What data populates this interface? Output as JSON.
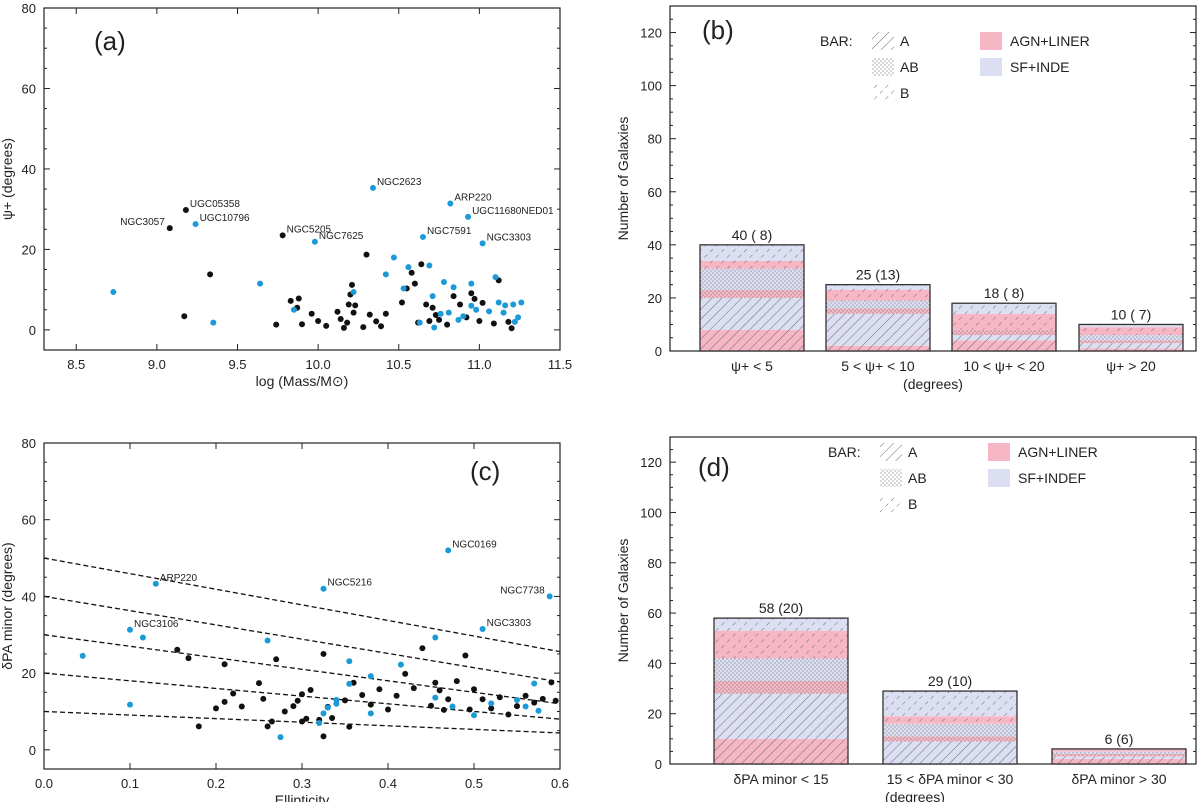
{
  "colors": {
    "black_point": "#111111",
    "blue_point": "#1a9ad6",
    "agn_liner": "#f7b6c4",
    "sf_indef": "#dcdff2",
    "frame": "#333333"
  },
  "chart_data": [
    {
      "type": "scatter",
      "panel_label": "(a)",
      "xlabel": "log (Mass/M⊙)",
      "ylabel": "ψ+ (degrees)",
      "xlim": [
        8.3,
        11.5
      ],
      "ylim": [
        -5,
        80
      ],
      "xticks": [
        "8.5",
        "9.0",
        "9.5",
        "10.0",
        "10.5",
        "11.0",
        "11.5"
      ],
      "yticks": [
        "0",
        "20",
        "40",
        "60",
        "80"
      ],
      "series": [
        {
          "name": "black",
          "points": [
            [
              9.08,
              25.3
            ],
            [
              9.18,
              29.8
            ],
            [
              9.17,
              3.4
            ],
            [
              9.33,
              13.8
            ],
            [
              9.74,
              1.3
            ],
            [
              9.78,
              23.5
            ],
            [
              9.83,
              7.2
            ],
            [
              9.87,
              5.5
            ],
            [
              9.88,
              7.8
            ],
            [
              9.9,
              1.4
            ],
            [
              9.96,
              4.0
            ],
            [
              10.0,
              2.2
            ],
            [
              10.05,
              1.0
            ],
            [
              10.12,
              4.5
            ],
            [
              10.14,
              2.7
            ],
            [
              10.16,
              0.5
            ],
            [
              10.18,
              1.8
            ],
            [
              10.19,
              6.3
            ],
            [
              10.2,
              8.8
            ],
            [
              10.21,
              11.2
            ],
            [
              10.22,
              4.3
            ],
            [
              10.23,
              6.1
            ],
            [
              10.28,
              0.7
            ],
            [
              10.32,
              3.8
            ],
            [
              10.36,
              2.1
            ],
            [
              10.39,
              0.9
            ],
            [
              10.42,
              4.0
            ],
            [
              10.52,
              6.8
            ],
            [
              10.55,
              10.3
            ],
            [
              10.58,
              14.2
            ],
            [
              10.6,
              11.5
            ],
            [
              10.62,
              1.8
            ],
            [
              10.64,
              16.3
            ],
            [
              10.67,
              6.3
            ],
            [
              10.69,
              2.2
            ],
            [
              10.71,
              5.5
            ],
            [
              10.73,
              3.7
            ],
            [
              10.75,
              2.5
            ],
            [
              10.8,
              1.3
            ],
            [
              10.84,
              8.4
            ],
            [
              10.88,
              6.3
            ],
            [
              10.92,
              3.1
            ],
            [
              10.95,
              9.1
            ],
            [
              10.97,
              7.7
            ],
            [
              11.0,
              2.2
            ],
            [
              11.02,
              6.7
            ],
            [
              11.09,
              1.6
            ],
            [
              11.12,
              12.3
            ],
            [
              11.18,
              2.0
            ],
            [
              11.2,
              0.4
            ],
            [
              10.3,
              18.7
            ]
          ],
          "color": "#111111"
        },
        {
          "name": "blue",
          "points": [
            [
              8.73,
              9.4
            ],
            [
              9.24,
              26.3
            ],
            [
              9.35,
              1.8
            ],
            [
              9.64,
              11.5
            ],
            [
              9.85,
              5.0
            ],
            [
              9.98,
              21.9
            ],
            [
              10.22,
              9.4
            ],
            [
              10.34,
              35.3
            ],
            [
              10.42,
              13.8
            ],
            [
              10.47,
              18.0
            ],
            [
              10.53,
              10.3
            ],
            [
              10.56,
              15.6
            ],
            [
              10.63,
              1.8
            ],
            [
              10.65,
              23.1
            ],
            [
              10.71,
              8.4
            ],
            [
              10.72,
              0.6
            ],
            [
              10.78,
              11.9
            ],
            [
              10.81,
              4.3
            ],
            [
              10.82,
              31.4
            ],
            [
              10.84,
              10.6
            ],
            [
              10.87,
              2.5
            ],
            [
              10.9,
              3.4
            ],
            [
              10.93,
              28.1
            ],
            [
              10.95,
              11.5
            ],
            [
              10.98,
              5.0
            ],
            [
              11.02,
              21.5
            ],
            [
              11.06,
              4.6
            ],
            [
              11.1,
              13.1
            ],
            [
              11.12,
              6.8
            ],
            [
              11.15,
              4.3
            ],
            [
              11.16,
              6.1
            ],
            [
              11.21,
              6.3
            ],
            [
              11.22,
              2.0
            ],
            [
              11.24,
              3.1
            ],
            [
              11.26,
              6.8
            ],
            [
              10.69,
              16.0
            ],
            [
              10.76,
              4.0
            ],
            [
              10.95,
              6.0
            ]
          ],
          "color": "#1a9ad6"
        }
      ],
      "annotations": [
        {
          "text": "NGC3057",
          "x": 9.08,
          "y": 25.3,
          "side": "left"
        },
        {
          "text": "UGC05358",
          "x": 9.18,
          "y": 29.8,
          "side": "right"
        },
        {
          "text": "UGC10796",
          "x": 9.24,
          "y": 26.3,
          "side": "right"
        },
        {
          "text": "NGC5205",
          "x": 9.78,
          "y": 23.5,
          "side": "right"
        },
        {
          "text": "NGC7625",
          "x": 9.98,
          "y": 21.9,
          "side": "right"
        },
        {
          "text": "NGC2623",
          "x": 10.34,
          "y": 35.3,
          "side": "right"
        },
        {
          "text": "ARP220",
          "x": 10.82,
          "y": 31.4,
          "side": "right"
        },
        {
          "text": "UGC11680NED01",
          "x": 10.93,
          "y": 28.1,
          "side": "right"
        },
        {
          "text": "NGC7591",
          "x": 10.65,
          "y": 23.1,
          "side": "right"
        },
        {
          "text": "NGC3303",
          "x": 11.02,
          "y": 21.5,
          "side": "right"
        }
      ]
    },
    {
      "type": "bar",
      "stacked": true,
      "panel_label": "(b)",
      "xlabel": "(degrees)",
      "ylabel": "Number of Galaxies",
      "ylim": [
        0,
        130
      ],
      "yticks": [
        "0",
        "20",
        "40",
        "60",
        "80",
        "100",
        "120"
      ],
      "categories": [
        "ψ+ < 5",
        "5 < ψ+ < 10",
        "10 < ψ+ < 20",
        "ψ+ > 20"
      ],
      "segment_order": [
        "AGN+LINER / A",
        "SF+INDEF / A",
        "AGN+LINER / AB",
        "SF+INDEF / AB",
        "AGN+LINER / B",
        "SF+INDEF / B"
      ],
      "segments": [
        [
          8,
          12,
          3,
          8,
          3,
          6
        ],
        [
          2,
          12,
          2,
          3,
          4,
          2
        ],
        [
          4,
          2,
          2,
          0,
          6,
          4
        ],
        [
          1,
          2,
          1,
          2,
          3,
          1
        ]
      ],
      "bar_labels": [
        "40 ( 8)",
        "25 (13)",
        "18 ( 8)",
        "10 ( 7)"
      ],
      "totals": [
        40,
        25,
        18,
        10
      ],
      "legend": {
        "bar_title": "BAR:",
        "bar_types": [
          "A",
          "AB",
          "B"
        ],
        "classes": [
          "AGN+LINER",
          "SF+INDE"
        ]
      }
    },
    {
      "type": "scatter",
      "panel_label": "(c)",
      "xlabel": "Ellipticity",
      "ylabel": "δPA minor (degrees)",
      "xlim": [
        0.0,
        0.6
      ],
      "ylim": [
        -5,
        80
      ],
      "xticks": [
        "0.0",
        "0.1",
        "0.2",
        "0.3",
        "0.4",
        "0.5",
        "0.6"
      ],
      "yticks": [
        "0",
        "20",
        "40",
        "60",
        "80"
      ],
      "dashed_lines": [
        [
          10,
          4.4
        ],
        [
          20,
          8.0
        ],
        [
          30,
          12.0
        ],
        [
          40,
          17.7
        ],
        [
          50,
          25.6
        ]
      ],
      "series": [
        {
          "name": "black",
          "points": [
            [
              0.155,
              26.1
            ],
            [
              0.168,
              23.9
            ],
            [
              0.18,
              6.1
            ],
            [
              0.2,
              10.8
            ],
            [
              0.21,
              12.5
            ],
            [
              0.21,
              22.3
            ],
            [
              0.22,
              14.7
            ],
            [
              0.23,
              11.3
            ],
            [
              0.25,
              17.4
            ],
            [
              0.255,
              13.3
            ],
            [
              0.26,
              6.1
            ],
            [
              0.265,
              7.4
            ],
            [
              0.27,
              23.6
            ],
            [
              0.28,
              10.0
            ],
            [
              0.29,
              11.4
            ],
            [
              0.295,
              12.8
            ],
            [
              0.3,
              7.4
            ],
            [
              0.305,
              8.1
            ],
            [
              0.31,
              15.6
            ],
            [
              0.32,
              7.8
            ],
            [
              0.325,
              25.0
            ],
            [
              0.33,
              11.2
            ],
            [
              0.335,
              8.3
            ],
            [
              0.35,
              12.9
            ],
            [
              0.355,
              6.0
            ],
            [
              0.36,
              17.5
            ],
            [
              0.37,
              14.3
            ],
            [
              0.38,
              11.8
            ],
            [
              0.39,
              15.8
            ],
            [
              0.41,
              14.1
            ],
            [
              0.42,
              19.8
            ],
            [
              0.43,
              16.1
            ],
            [
              0.44,
              26.5
            ],
            [
              0.45,
              11.5
            ],
            [
              0.455,
              17.5
            ],
            [
              0.46,
              15.5
            ],
            [
              0.465,
              10.4
            ],
            [
              0.47,
              13.2
            ],
            [
              0.48,
              17.9
            ],
            [
              0.49,
              24.6
            ],
            [
              0.495,
              10.5
            ],
            [
              0.5,
              15.8
            ],
            [
              0.51,
              13.2
            ],
            [
              0.52,
              10.8
            ],
            [
              0.53,
              13.7
            ],
            [
              0.54,
              9.2
            ],
            [
              0.55,
              11.4
            ],
            [
              0.56,
              14.1
            ],
            [
              0.57,
              12.3
            ],
            [
              0.58,
              13.3
            ],
            [
              0.59,
              17.6
            ],
            [
              0.595,
              12.8
            ],
            [
              0.325,
              3.5
            ],
            [
              0.3,
              14.5
            ],
            [
              0.4,
              10.5
            ]
          ],
          "color": "#111111"
        },
        {
          "name": "blue",
          "points": [
            [
              0.045,
              24.5
            ],
            [
              0.1,
              11.8
            ],
            [
              0.1,
              31.3
            ],
            [
              0.115,
              29.3
            ],
            [
              0.13,
              43.3
            ],
            [
              0.26,
              28.5
            ],
            [
              0.275,
              3.3
            ],
            [
              0.32,
              7.0
            ],
            [
              0.325,
              42.0
            ],
            [
              0.325,
              9.5
            ],
            [
              0.33,
              11.0
            ],
            [
              0.34,
              13.0
            ],
            [
              0.355,
              17.2
            ],
            [
              0.355,
              23.1
            ],
            [
              0.38,
              19.2
            ],
            [
              0.38,
              9.5
            ],
            [
              0.415,
              22.2
            ],
            [
              0.455,
              29.3
            ],
            [
              0.455,
              13.6
            ],
            [
              0.47,
              52.0
            ],
            [
              0.475,
              11.3
            ],
            [
              0.5,
              9.0
            ],
            [
              0.51,
              31.5
            ],
            [
              0.52,
              12.1
            ],
            [
              0.55,
              13.0
            ],
            [
              0.56,
              11.3
            ],
            [
              0.57,
              17.3
            ],
            [
              0.575,
              10.2
            ],
            [
              0.588,
              40.0
            ],
            [
              0.34,
              12.0
            ]
          ],
          "color": "#1a9ad6"
        }
      ],
      "annotations": [
        {
          "text": "ARP220",
          "x": 0.13,
          "y": 43.3,
          "side": "right"
        },
        {
          "text": "NGC3106",
          "x": 0.1,
          "y": 31.3,
          "side": "right"
        },
        {
          "text": "NGC5216",
          "x": 0.325,
          "y": 42.0,
          "side": "right"
        },
        {
          "text": "NGC0169",
          "x": 0.47,
          "y": 52.0,
          "side": "right"
        },
        {
          "text": "NGC7738",
          "x": 0.588,
          "y": 40.0,
          "side": "left"
        },
        {
          "text": "NGC3303",
          "x": 0.51,
          "y": 31.5,
          "side": "right"
        }
      ]
    },
    {
      "type": "bar",
      "stacked": true,
      "panel_label": "(d)",
      "xlabel": "(degrees)",
      "ylabel": "Number of Galaxies",
      "ylim": [
        0,
        130
      ],
      "yticks": [
        "0",
        "20",
        "40",
        "60",
        "80",
        "100",
        "120"
      ],
      "categories": [
        "δPA minor < 15",
        "15 < δPA minor < 30",
        "δPA minor > 30"
      ],
      "segment_order": [
        "AGN+LINER / A",
        "SF+INDEF / A",
        "AGN+LINER / AB",
        "SF+INDEF / AB",
        "AGN+LINER / B",
        "SF+INDEF / B"
      ],
      "segments": [
        [
          10,
          18,
          5,
          9,
          11,
          5
        ],
        [
          0,
          9,
          2,
          5,
          3,
          10
        ],
        [
          2,
          1,
          1,
          1,
          1,
          0
        ]
      ],
      "bar_labels": [
        "58 (20)",
        "29 (10)",
        "6 (6)"
      ],
      "totals": [
        58,
        29,
        6
      ],
      "legend": {
        "bar_title": "BAR:",
        "bar_types": [
          "A",
          "AB",
          "B"
        ],
        "classes": [
          "AGN+LINER",
          "SF+INDEF"
        ]
      }
    }
  ]
}
